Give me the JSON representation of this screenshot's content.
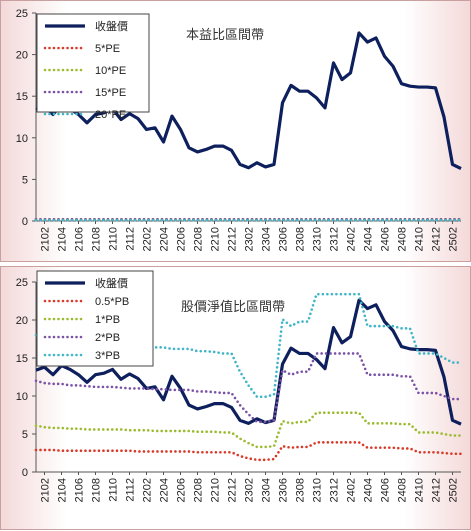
{
  "chart_data": [
    {
      "type": "line",
      "title": "本益比區間帶",
      "x": [
        "2101",
        "2102",
        "2103",
        "2104",
        "2105",
        "2106",
        "2107",
        "2108",
        "2109",
        "2110",
        "2111",
        "2112",
        "2201",
        "2202",
        "2203",
        "2204",
        "2205",
        "2206",
        "2207",
        "2208",
        "2209",
        "2210",
        "2211",
        "2212",
        "2301",
        "2302",
        "2303",
        "2304",
        "2305",
        "2306",
        "2307",
        "2308",
        "2309",
        "2310",
        "2311",
        "2312",
        "2401",
        "2402",
        "2403",
        "2404",
        "2405",
        "2406",
        "2407",
        "2408",
        "2409",
        "2410",
        "2411",
        "2412",
        "2501",
        "2502",
        "2503"
      ],
      "xticks": [
        "2102",
        "2104",
        "2106",
        "2108",
        "2110",
        "2112",
        "2202",
        "2204",
        "2206",
        "2208",
        "2210",
        "2212",
        "2302",
        "2304",
        "2306",
        "2308",
        "2310",
        "2312",
        "2402",
        "2404",
        "2406",
        "2408",
        "2410",
        "2412",
        "2502"
      ],
      "ylim": [
        0,
        25
      ],
      "yticks": [
        0,
        5,
        10,
        15,
        20,
        25
      ],
      "legend_position": "top-left",
      "series": [
        {
          "name": "收盤價",
          "color": "#0d1f5c",
          "style": "solid",
          "values": [
            13.4,
            13.8,
            12.8,
            14.0,
            13.5,
            12.8,
            11.8,
            12.8,
            13.0,
            13.5,
            12.2,
            12.9,
            12.3,
            11.0,
            11.2,
            9.5,
            12.6,
            11.0,
            8.8,
            8.3,
            8.6,
            9.0,
            9.0,
            8.5,
            6.8,
            6.4,
            7.0,
            6.5,
            6.8,
            14.2,
            16.3,
            15.6,
            15.6,
            14.8,
            13.6,
            19.0,
            17.0,
            17.8,
            22.6,
            21.5,
            22.0,
            19.8,
            18.6,
            16.5,
            16.2,
            16.1,
            16.1,
            16.0,
            12.5,
            6.8,
            6.3
          ]
        },
        {
          "name": "5*PE",
          "color": "#d83a2a",
          "style": "dotted",
          "values": [
            0.2,
            0.2,
            0.2,
            0.2,
            0.2,
            0.2,
            0.2,
            0.2,
            0.2,
            0.2,
            0.2,
            0.2,
            0.2,
            0.2,
            0.2,
            0.2,
            0.2,
            0.2,
            0.2,
            0.2,
            0.2,
            0.2,
            0.2,
            0.2,
            0.2,
            0.2,
            0.2,
            0.2,
            0.2,
            0.2,
            0.2,
            0.2,
            0.2,
            0.2,
            0.2,
            0.2,
            0.2,
            0.2,
            0.2,
            0.2,
            0.2,
            0.2,
            0.2,
            0.2,
            0.2,
            0.2,
            0.2,
            0.2,
            0.2,
            0.2,
            0.2
          ]
        },
        {
          "name": "10*PE",
          "color": "#9bbb30",
          "style": "dotted",
          "values": [
            0.2,
            0.2,
            0.2,
            0.2,
            0.2,
            0.2,
            0.2,
            0.2,
            0.2,
            0.2,
            0.2,
            0.2,
            0.2,
            0.2,
            0.2,
            0.2,
            0.2,
            0.2,
            0.2,
            0.2,
            0.2,
            0.2,
            0.2,
            0.2,
            0.2,
            0.2,
            0.2,
            0.2,
            0.2,
            0.2,
            0.2,
            0.2,
            0.2,
            0.2,
            0.2,
            0.2,
            0.2,
            0.2,
            0.2,
            0.2,
            0.2,
            0.2,
            0.2,
            0.2,
            0.2,
            0.2,
            0.2,
            0.2,
            0.2,
            0.2,
            0.2
          ]
        },
        {
          "name": "15*PE",
          "color": "#7a52a6",
          "style": "dotted",
          "values": [
            0.2,
            0.2,
            0.2,
            0.2,
            0.2,
            0.2,
            0.2,
            0.2,
            0.2,
            0.2,
            0.2,
            0.2,
            0.2,
            0.2,
            0.2,
            0.2,
            0.2,
            0.2,
            0.2,
            0.2,
            0.2,
            0.2,
            0.2,
            0.2,
            0.2,
            0.2,
            0.2,
            0.2,
            0.2,
            0.2,
            0.2,
            0.2,
            0.2,
            0.2,
            0.2,
            0.2,
            0.2,
            0.2,
            0.2,
            0.2,
            0.2,
            0.2,
            0.2,
            0.2,
            0.2,
            0.2,
            0.2,
            0.2,
            0.2,
            0.2,
            0.2
          ]
        },
        {
          "name": "20*PE",
          "color": "#3fb5c8",
          "style": "dotted",
          "values": [
            0.1,
            0.1,
            0.1,
            0.1,
            0.1,
            0.1,
            0.1,
            0.1,
            0.1,
            0.1,
            0.1,
            0.1,
            0.1,
            0.1,
            0.1,
            0.1,
            0.1,
            0.1,
            0.1,
            0.1,
            0.1,
            0.1,
            0.1,
            0.1,
            0.1,
            0.1,
            0.1,
            0.1,
            0.1,
            0.1,
            0.1,
            0.1,
            0.1,
            0.1,
            0.1,
            0.1,
            0.1,
            0.1,
            0.1,
            0.1,
            0.1,
            0.1,
            0.1,
            0.1,
            0.1,
            0.1,
            0.1,
            0.1,
            0.1,
            0.1,
            0.1
          ]
        }
      ]
    },
    {
      "type": "line",
      "title": "股價淨值比區間帶",
      "x": [
        "2101",
        "2102",
        "2103",
        "2104",
        "2105",
        "2106",
        "2107",
        "2108",
        "2109",
        "2110",
        "2111",
        "2112",
        "2201",
        "2202",
        "2203",
        "2204",
        "2205",
        "2206",
        "2207",
        "2208",
        "2209",
        "2210",
        "2211",
        "2212",
        "2301",
        "2302",
        "2303",
        "2304",
        "2305",
        "2306",
        "2307",
        "2308",
        "2309",
        "2310",
        "2311",
        "2312",
        "2401",
        "2402",
        "2403",
        "2404",
        "2405",
        "2406",
        "2407",
        "2408",
        "2409",
        "2410",
        "2411",
        "2412",
        "2501",
        "2502",
        "2503"
      ],
      "xticks": [
        "2102",
        "2104",
        "2106",
        "2108",
        "2110",
        "2112",
        "2202",
        "2204",
        "2206",
        "2208",
        "2210",
        "2212",
        "2302",
        "2304",
        "2306",
        "2308",
        "2310",
        "2312",
        "2402",
        "2404",
        "2406",
        "2408",
        "2410",
        "2412",
        "2502"
      ],
      "ylim": [
        0,
        25
      ],
      "yticks": [
        0,
        5,
        10,
        15,
        20,
        25
      ],
      "legend_position": "top-left",
      "series": [
        {
          "name": "收盤價",
          "color": "#0d1f5c",
          "style": "solid",
          "values": [
            13.4,
            13.8,
            12.8,
            14.0,
            13.5,
            12.8,
            11.8,
            12.8,
            13.0,
            13.5,
            12.2,
            12.9,
            12.3,
            11.0,
            11.2,
            9.5,
            12.6,
            11.0,
            8.8,
            8.3,
            8.6,
            9.0,
            9.0,
            8.5,
            6.8,
            6.4,
            7.0,
            6.5,
            6.8,
            14.2,
            16.3,
            15.6,
            15.6,
            14.8,
            13.6,
            19.0,
            17.0,
            17.8,
            22.6,
            21.5,
            22.0,
            19.8,
            18.6,
            16.5,
            16.2,
            16.1,
            16.1,
            16.0,
            12.5,
            6.8,
            6.3
          ]
        },
        {
          "name": "0.5*PB",
          "color": "#d83a2a",
          "style": "dotted",
          "values": [
            2.9,
            2.9,
            2.9,
            2.8,
            2.8,
            2.8,
            2.8,
            2.8,
            2.8,
            2.8,
            2.8,
            2.8,
            2.7,
            2.7,
            2.7,
            2.7,
            2.7,
            2.7,
            2.7,
            2.6,
            2.6,
            2.6,
            2.6,
            2.6,
            2.1,
            1.8,
            1.6,
            1.6,
            1.7,
            3.4,
            3.2,
            3.3,
            3.3,
            3.9,
            3.9,
            3.9,
            3.9,
            3.9,
            3.9,
            3.2,
            3.2,
            3.2,
            3.2,
            3.1,
            3.1,
            2.6,
            2.6,
            2.6,
            2.5,
            2.4,
            2.4
          ]
        },
        {
          "name": "1*PB",
          "color": "#9bbb30",
          "style": "dotted",
          "values": [
            6.1,
            5.9,
            5.8,
            5.8,
            5.7,
            5.7,
            5.6,
            5.6,
            5.6,
            5.6,
            5.6,
            5.5,
            5.5,
            5.5,
            5.4,
            5.4,
            5.4,
            5.4,
            5.4,
            5.3,
            5.3,
            5.3,
            5.2,
            5.2,
            4.4,
            3.8,
            3.3,
            3.3,
            3.4,
            6.7,
            6.4,
            6.6,
            6.6,
            7.8,
            7.8,
            7.8,
            7.8,
            7.8,
            7.8,
            6.4,
            6.4,
            6.4,
            6.4,
            6.3,
            6.3,
            5.2,
            5.2,
            5.2,
            5.0,
            4.8,
            4.8
          ]
        },
        {
          "name": "2*PB",
          "color": "#7a52a6",
          "style": "dotted",
          "values": [
            12.0,
            11.7,
            11.6,
            11.6,
            11.4,
            11.4,
            11.3,
            11.2,
            11.2,
            11.2,
            11.1,
            11.0,
            11.0,
            11.0,
            10.9,
            10.9,
            10.8,
            10.8,
            10.8,
            10.6,
            10.6,
            10.5,
            10.4,
            10.4,
            8.8,
            7.6,
            6.6,
            6.6,
            6.8,
            13.4,
            12.8,
            13.2,
            13.2,
            15.6,
            15.6,
            15.6,
            15.6,
            15.6,
            15.6,
            12.8,
            12.8,
            12.8,
            12.8,
            12.6,
            12.6,
            10.4,
            10.4,
            10.4,
            10.0,
            9.6,
            9.6
          ]
        },
        {
          "name": "3*PB",
          "color": "#3fb5c8",
          "style": "dotted",
          "values": [
            18.0,
            17.6,
            17.4,
            17.4,
            17.1,
            17.1,
            16.9,
            16.8,
            16.8,
            16.8,
            16.6,
            16.5,
            16.5,
            16.5,
            16.4,
            16.4,
            16.2,
            16.2,
            16.2,
            15.9,
            15.9,
            15.8,
            15.6,
            15.6,
            13.2,
            11.4,
            9.9,
            9.9,
            10.2,
            20.1,
            19.2,
            19.8,
            19.8,
            23.4,
            23.4,
            23.4,
            23.4,
            23.4,
            23.4,
            19.2,
            19.2,
            19.2,
            19.2,
            18.9,
            18.9,
            15.6,
            15.6,
            15.6,
            15.0,
            14.4,
            14.4
          ]
        }
      ]
    }
  ]
}
